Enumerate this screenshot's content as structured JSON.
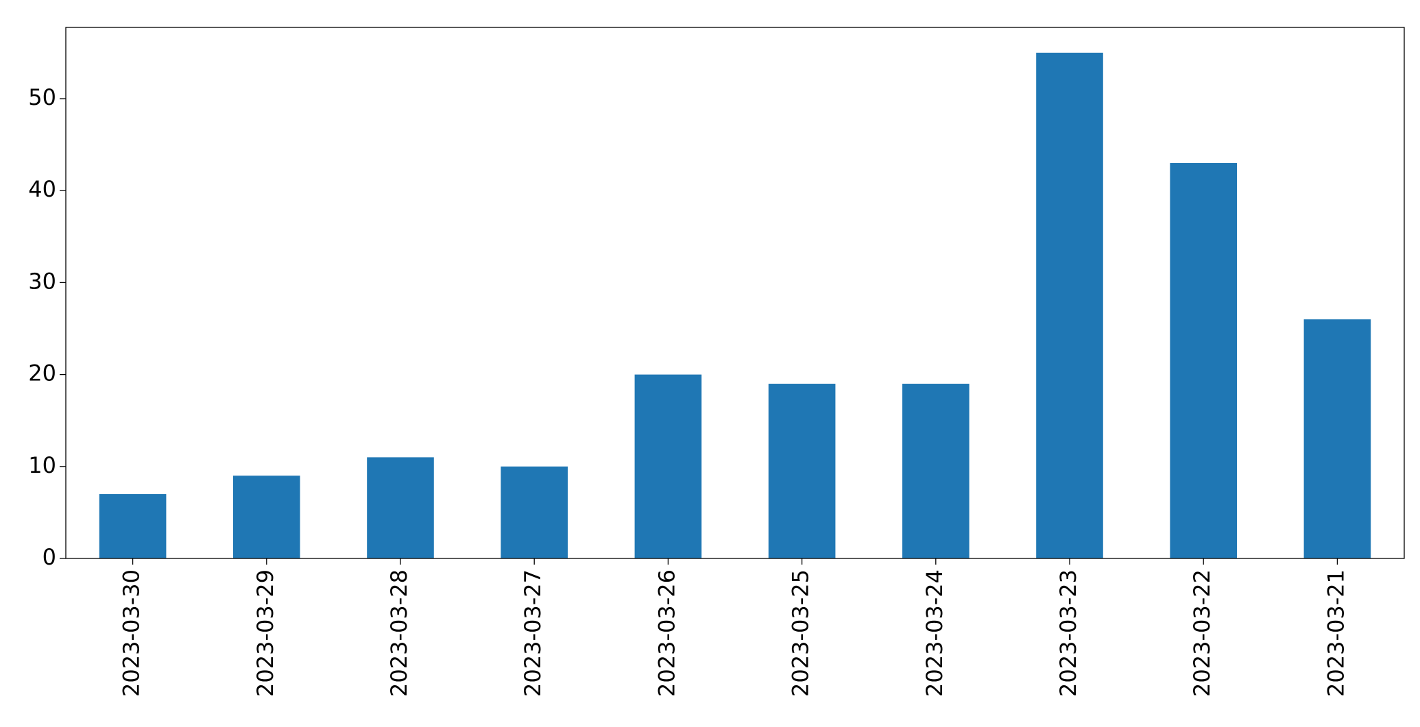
{
  "chart_data": {
    "type": "bar",
    "categories": [
      "2023-03-30",
      "2023-03-29",
      "2023-03-28",
      "2023-03-27",
      "2023-03-26",
      "2023-03-25",
      "2023-03-24",
      "2023-03-23",
      "2023-03-22",
      "2023-03-21"
    ],
    "values": [
      7,
      9,
      11,
      10,
      20,
      19,
      19,
      55,
      43,
      26
    ],
    "color": "#1f77b4",
    "ylim": [
      0,
      57.75
    ],
    "yticks": [
      0,
      10,
      20,
      30,
      40,
      50
    ],
    "grid": false
  }
}
